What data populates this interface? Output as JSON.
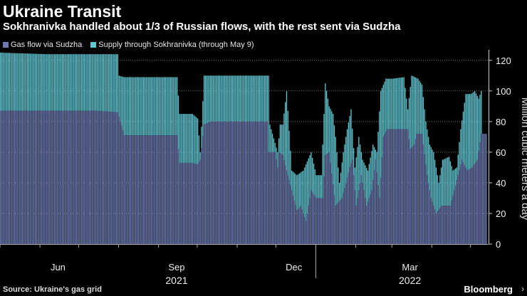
{
  "header": {
    "title": "Ukraine Transit",
    "subtitle": "Sokhranivka handled about 1/3 of Russian flows, with the rest sent via Sudzha"
  },
  "footer": {
    "source": "Source: Ukraine's gas grid",
    "brand": "Bloomberg"
  },
  "colors": {
    "background": "#000000",
    "sudzha": "#6d7bb0",
    "sokhranivka": "#63c7d3",
    "grid": "#666666",
    "text": "#ffffff"
  },
  "chart_data": {
    "type": "bar",
    "stacked": true,
    "ylabel": "Million cubic meters a day",
    "ylim": [
      0,
      125
    ],
    "yticks": [
      0,
      20,
      40,
      60,
      80,
      100,
      120
    ],
    "y_axis_side": "right",
    "grid": "horizontal dotted",
    "legend_position": "top-left",
    "x_tick_labels": [
      {
        "label": "Jun",
        "date": "2021-06-15"
      },
      {
        "label": "Sep",
        "date": "2021-09-15"
      },
      {
        "label": "Dec",
        "date": "2021-12-15"
      },
      {
        "label": "Mar",
        "date": "2022-03-15"
      }
    ],
    "x_year_labels": [
      {
        "label": "2021",
        "date": "2021-09-15"
      },
      {
        "label": "2022",
        "date": "2022-03-15"
      }
    ],
    "month_ticks": [
      "2021-05-01",
      "2021-06-01",
      "2021-07-01",
      "2021-08-01",
      "2021-09-01",
      "2021-10-01",
      "2021-11-01",
      "2021-12-01",
      "2022-01-01",
      "2022-02-01",
      "2022-03-01",
      "2022-04-01",
      "2022-05-01"
    ],
    "year_divider": "2022-01-01",
    "x_range": [
      "2021-05-01",
      "2022-05-15"
    ],
    "series": [
      {
        "name": "Gas flow via Sudzha",
        "color": "#6d7bb0",
        "points": [
          [
            "2021-05-01",
            87
          ],
          [
            "2021-07-15",
            87
          ],
          [
            "2021-07-31",
            86
          ],
          [
            "2021-08-05",
            71
          ],
          [
            "2021-09-15",
            71
          ],
          [
            "2021-09-17",
            53
          ],
          [
            "2021-09-27",
            53
          ],
          [
            "2021-10-01",
            52
          ],
          [
            "2021-10-03",
            55
          ],
          [
            "2021-10-06",
            78
          ],
          [
            "2021-10-11",
            80
          ],
          [
            "2021-11-24",
            80
          ],
          [
            "2021-11-25",
            60
          ],
          [
            "2021-11-30",
            60
          ],
          [
            "2021-12-02",
            50
          ],
          [
            "2021-12-03",
            60
          ],
          [
            "2021-12-06",
            58
          ],
          [
            "2021-12-09",
            48
          ],
          [
            "2021-12-13",
            35
          ],
          [
            "2021-12-17",
            22
          ],
          [
            "2021-12-20",
            25
          ],
          [
            "2021-12-24",
            15
          ],
          [
            "2021-12-28",
            35
          ],
          [
            "2022-01-01",
            30
          ],
          [
            "2022-01-06",
            30
          ],
          [
            "2022-01-08",
            58
          ],
          [
            "2022-01-11",
            60
          ],
          [
            "2022-01-16",
            25
          ],
          [
            "2022-01-21",
            30
          ],
          [
            "2022-01-24",
            40
          ],
          [
            "2022-01-27",
            50
          ],
          [
            "2022-01-29",
            55
          ],
          [
            "2022-02-01",
            25
          ],
          [
            "2022-02-05",
            45
          ],
          [
            "2022-02-09",
            25
          ],
          [
            "2022-02-13",
            35
          ],
          [
            "2022-02-16",
            55
          ],
          [
            "2022-02-19",
            30
          ],
          [
            "2022-02-22",
            70
          ],
          [
            "2022-02-25",
            75
          ],
          [
            "2022-03-13",
            75
          ],
          [
            "2022-03-15",
            62
          ],
          [
            "2022-03-18",
            65
          ],
          [
            "2022-03-20",
            72
          ],
          [
            "2022-03-24",
            72
          ],
          [
            "2022-03-28",
            45
          ],
          [
            "2022-03-31",
            30
          ],
          [
            "2022-04-04",
            20
          ],
          [
            "2022-04-08",
            25
          ],
          [
            "2022-04-15",
            25
          ],
          [
            "2022-04-18",
            35
          ],
          [
            "2022-04-24",
            55
          ],
          [
            "2022-04-28",
            48
          ],
          [
            "2022-05-02",
            50
          ],
          [
            "2022-05-06",
            55
          ],
          [
            "2022-05-09",
            72
          ],
          [
            "2022-05-13",
            72
          ]
        ]
      },
      {
        "name": "Supply through Sokhranivka (through May 9)",
        "color": "#63c7d3",
        "points": [
          [
            "2021-05-01",
            125
          ],
          [
            "2021-06-07",
            124
          ],
          [
            "2021-07-31",
            124
          ],
          [
            "2021-08-01",
            110
          ],
          [
            "2021-08-05",
            109
          ],
          [
            "2021-09-15",
            109
          ],
          [
            "2021-09-17",
            85
          ],
          [
            "2021-09-27",
            85
          ],
          [
            "2021-10-01",
            82
          ],
          [
            "2021-10-03",
            60
          ],
          [
            "2021-10-06",
            110
          ],
          [
            "2021-11-25",
            110
          ],
          [
            "2021-11-26",
            78
          ],
          [
            "2021-12-02",
            60
          ],
          [
            "2021-12-04",
            78
          ],
          [
            "2021-12-06",
            78
          ],
          [
            "2021-12-09",
            100
          ],
          [
            "2021-12-13",
            48
          ],
          [
            "2021-12-17",
            45
          ],
          [
            "2021-12-22",
            48
          ],
          [
            "2021-12-28",
            60
          ],
          [
            "2022-01-01",
            45
          ],
          [
            "2022-01-05",
            45
          ],
          [
            "2022-01-08",
            105
          ],
          [
            "2022-01-11",
            90
          ],
          [
            "2022-01-14",
            85
          ],
          [
            "2022-01-16",
            70
          ],
          [
            "2022-01-19",
            40
          ],
          [
            "2022-01-22",
            60
          ],
          [
            "2022-01-25",
            75
          ],
          [
            "2022-01-28",
            88
          ],
          [
            "2022-01-31",
            50
          ],
          [
            "2022-02-03",
            70
          ],
          [
            "2022-02-06",
            55
          ],
          [
            "2022-02-10",
            48
          ],
          [
            "2022-02-14",
            65
          ],
          [
            "2022-02-17",
            60
          ],
          [
            "2022-02-20",
            100
          ],
          [
            "2022-02-24",
            108
          ],
          [
            "2022-03-01",
            108
          ],
          [
            "2022-03-10",
            109
          ],
          [
            "2022-03-13",
            88
          ],
          [
            "2022-03-16",
            110
          ],
          [
            "2022-03-21",
            108
          ],
          [
            "2022-03-24",
            104
          ],
          [
            "2022-03-27",
            80
          ],
          [
            "2022-03-30",
            65
          ],
          [
            "2022-04-02",
            60
          ],
          [
            "2022-04-06",
            40
          ],
          [
            "2022-04-09",
            55
          ],
          [
            "2022-04-14",
            57
          ],
          [
            "2022-04-17",
            48
          ],
          [
            "2022-04-20",
            50
          ],
          [
            "2022-04-23",
            75
          ],
          [
            "2022-04-27",
            98
          ],
          [
            "2022-05-01",
            98
          ],
          [
            "2022-05-04",
            100
          ],
          [
            "2022-05-07",
            95
          ],
          [
            "2022-05-09",
            100
          ]
        ]
      }
    ]
  }
}
